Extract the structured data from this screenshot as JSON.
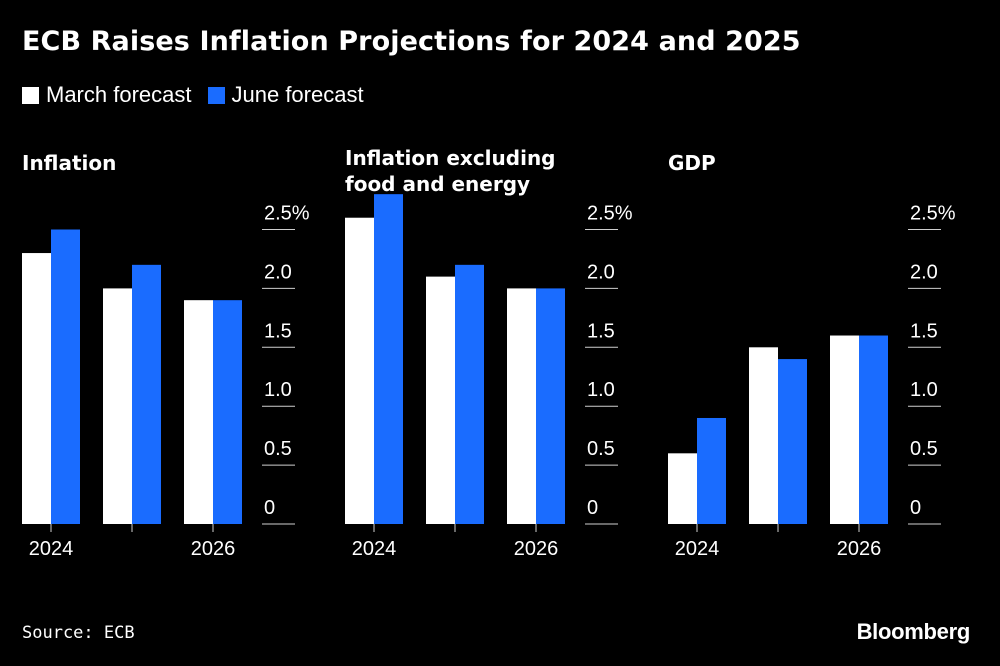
{
  "title": "ECB Raises Inflation Projections for 2024 and 2025",
  "legend": [
    {
      "label": "March forecast",
      "color": "#ffffff"
    },
    {
      "label": "June forecast",
      "color": "#1a6cff"
    }
  ],
  "source": "Source: ECB",
  "logo": "Bloomberg",
  "chart_data": [
    {
      "type": "bar",
      "title": "Inflation",
      "categories": [
        "2024",
        "2025",
        "2026"
      ],
      "x_tick_labels": [
        "2024",
        "",
        "2026"
      ],
      "series": [
        {
          "name": "March forecast",
          "values": [
            2.3,
            2.0,
            1.9
          ],
          "color": "#ffffff"
        },
        {
          "name": "June forecast",
          "values": [
            2.5,
            2.2,
            1.9
          ],
          "color": "#1a6cff"
        }
      ],
      "ylim": [
        0,
        2.8
      ],
      "y_ticks": [
        0,
        0.5,
        1.0,
        1.5,
        2.0,
        2.5
      ],
      "y_tick_labels": [
        "0",
        "0.5",
        "1.0",
        "1.5",
        "2.0",
        "2.5%"
      ],
      "xlabel": "",
      "ylabel": ""
    },
    {
      "type": "bar",
      "title": "Inflation excluding\nfood and energy",
      "categories": [
        "2024",
        "2025",
        "2026"
      ],
      "x_tick_labels": [
        "2024",
        "",
        "2026"
      ],
      "series": [
        {
          "name": "March forecast",
          "values": [
            2.6,
            2.1,
            2.0
          ],
          "color": "#ffffff"
        },
        {
          "name": "June forecast",
          "values": [
            2.8,
            2.2,
            2.0
          ],
          "color": "#1a6cff"
        }
      ],
      "ylim": [
        0,
        2.8
      ],
      "y_ticks": [
        0,
        0.5,
        1.0,
        1.5,
        2.0,
        2.5
      ],
      "y_tick_labels": [
        "0",
        "0.5",
        "1.0",
        "1.5",
        "2.0",
        "2.5%"
      ],
      "xlabel": "",
      "ylabel": ""
    },
    {
      "type": "bar",
      "title": "GDP",
      "categories": [
        "2024",
        "2025",
        "2026"
      ],
      "x_tick_labels": [
        "2024",
        "",
        "2026"
      ],
      "series": [
        {
          "name": "March forecast",
          "values": [
            0.6,
            1.5,
            1.6
          ],
          "color": "#ffffff"
        },
        {
          "name": "June forecast",
          "values": [
            0.9,
            1.4,
            1.6
          ],
          "color": "#1a6cff"
        }
      ],
      "ylim": [
        0,
        2.8
      ],
      "y_ticks": [
        0,
        0.5,
        1.0,
        1.5,
        2.0,
        2.5
      ],
      "y_tick_labels": [
        "0",
        "0.5",
        "1.0",
        "1.5",
        "2.0",
        "2.5%"
      ],
      "xlabel": "",
      "ylabel": ""
    }
  ]
}
